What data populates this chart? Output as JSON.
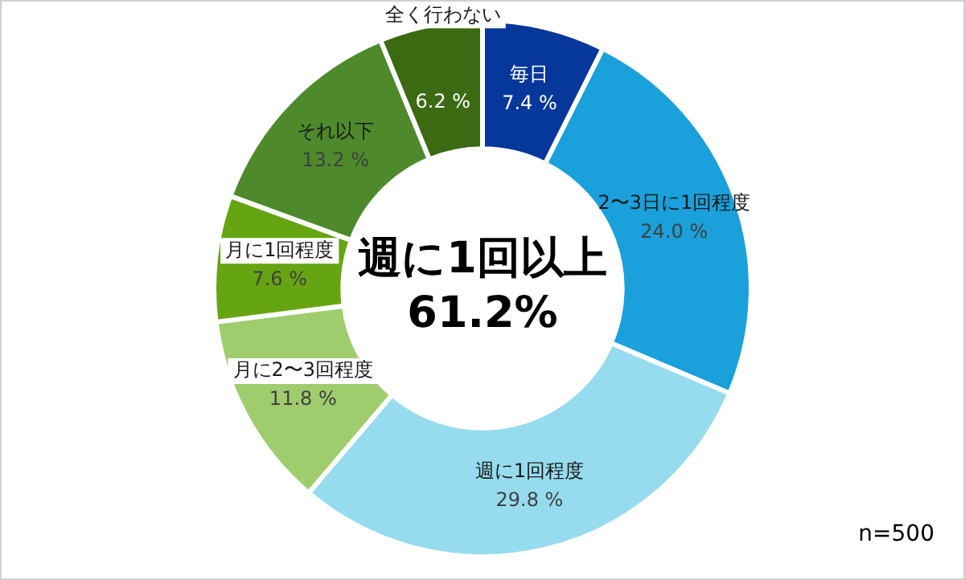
{
  "chart_data": {
    "type": "donut",
    "categories": [
      "毎日",
      "2〜3日に1回程度",
      "週に1回程度",
      "月に2〜3回程度",
      "月に1回程度",
      "それ以下",
      "全く行わない"
    ],
    "values": [
      7.4,
      24.0,
      29.8,
      11.8,
      7.6,
      13.2,
      6.2
    ],
    "value_labels": [
      "7.4 %",
      "24.0 %",
      "29.8 %",
      "11.8 %",
      "7.6 %",
      "13.2 %",
      "6.2 %"
    ],
    "colors": [
      "#06379b",
      "#1aa0db",
      "#96dcee",
      "#9fcd6e",
      "#66a512",
      "#4e8a2b",
      "#3b6a13"
    ],
    "legend": false,
    "annotations": [
      "週に1回以上",
      "61.2%",
      "n=500"
    ]
  }
}
